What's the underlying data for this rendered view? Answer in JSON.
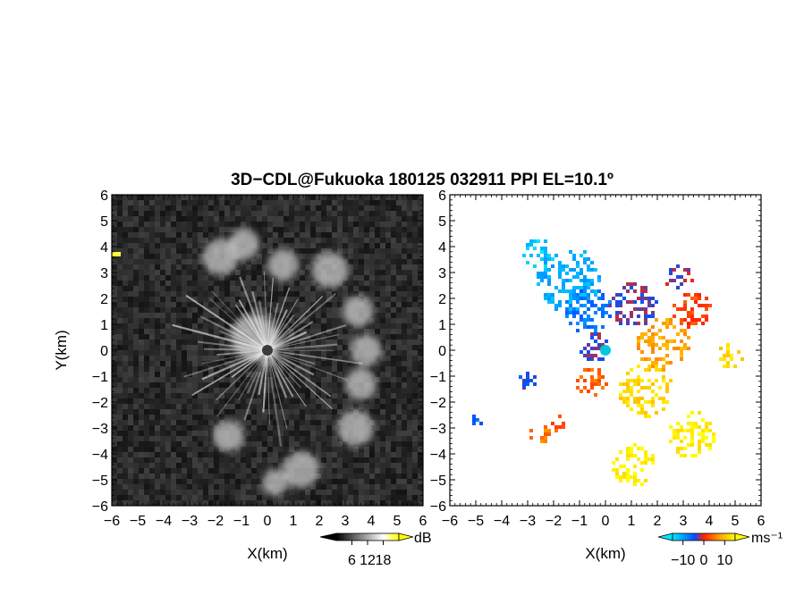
{
  "chart_data": [
    {
      "type": "heatmap",
      "panel": "left",
      "title": "3D−CDL@Fukuoka 180125 032911 PPI EL=10.1º",
      "xlabel": "X(km)",
      "ylabel": "Y(km)",
      "xlim": [
        -6,
        6
      ],
      "ylim": [
        -6,
        6
      ],
      "xticks": [
        "−6",
        "−5",
        "−4",
        "−3",
        "−2",
        "−1",
        "0",
        "1",
        "2",
        "3",
        "4",
        "5",
        "6"
      ],
      "yticks": [
        "6",
        "5",
        "4",
        "3",
        "2",
        "1",
        "0",
        "−1",
        "−2",
        "−3",
        "−4",
        "−5",
        "−6"
      ],
      "colorbar": {
        "unit": "dB",
        "ticks": [
          "6",
          "12",
          "18"
        ],
        "range": [
          0,
          24
        ],
        "colors": [
          "#000000",
          "#ffffff",
          "#ffff00"
        ]
      },
      "echo_regions": [
        {
          "x": -0.5,
          "y": 0.5,
          "r": 0.9
        },
        {
          "x": -1.8,
          "y": 3.6,
          "r": 0.7
        },
        {
          "x": -0.9,
          "y": 4.1,
          "r": 0.6
        },
        {
          "x": 0.6,
          "y": 3.3,
          "r": 0.6
        },
        {
          "x": 2.4,
          "y": 3.1,
          "r": 0.7
        },
        {
          "x": 3.5,
          "y": 1.5,
          "r": 0.6
        },
        {
          "x": 3.8,
          "y": 0.0,
          "r": 0.6
        },
        {
          "x": 3.6,
          "y": -1.3,
          "r": 0.6
        },
        {
          "x": 3.4,
          "y": -3.0,
          "r": 0.7
        },
        {
          "x": 1.3,
          "y": -4.6,
          "r": 0.7
        },
        {
          "x": -1.5,
          "y": -3.3,
          "r": 0.6
        },
        {
          "x": 0.3,
          "y": -5.1,
          "r": 0.5
        }
      ]
    },
    {
      "type": "heatmap",
      "panel": "right",
      "xlabel": "X(km)",
      "xlim": [
        -6,
        6
      ],
      "ylim": [
        -6,
        6
      ],
      "xticks": [
        "−6",
        "−5",
        "−4",
        "−3",
        "−2",
        "−1",
        "0",
        "1",
        "2",
        "3",
        "4",
        "5",
        "6"
      ],
      "yticks": [
        "6",
        "5",
        "4",
        "3",
        "2",
        "1",
        "0",
        "−1",
        "−2",
        "−3",
        "−4",
        "−5",
        "−6"
      ],
      "colorbar": {
        "unit": "ms⁻¹",
        "ticks": [
          "−10",
          "0",
          "10"
        ],
        "range": [
          -15,
          15
        ],
        "colors": [
          "#00e8ff",
          "#0050ff",
          "#ff2000",
          "#ffa000",
          "#ffff00"
        ]
      },
      "velocity_regions": [
        {
          "x": -1.5,
          "y": 2.8,
          "r": 1.2,
          "v": -11
        },
        {
          "x": -2.6,
          "y": 3.8,
          "r": 0.6,
          "v": -13
        },
        {
          "x": -0.7,
          "y": 1.6,
          "r": 0.9,
          "v": -7
        },
        {
          "x": -0.5,
          "y": 0.2,
          "r": 0.6,
          "v": -3
        },
        {
          "x": 1.0,
          "y": 1.8,
          "r": 0.9,
          "v": -3
        },
        {
          "x": 2.8,
          "y": 2.9,
          "r": 0.5,
          "v": -2
        },
        {
          "x": 3.3,
          "y": 1.6,
          "r": 0.7,
          "v": 2
        },
        {
          "x": 2.2,
          "y": 0.3,
          "r": 1.0,
          "v": 8
        },
        {
          "x": 4.8,
          "y": -0.2,
          "r": 0.5,
          "v": 12
        },
        {
          "x": 1.5,
          "y": -1.5,
          "r": 1.0,
          "v": 12
        },
        {
          "x": 3.3,
          "y": -3.2,
          "r": 0.9,
          "v": 14
        },
        {
          "x": 1.0,
          "y": -4.4,
          "r": 0.8,
          "v": 14
        },
        {
          "x": -0.6,
          "y": -1.2,
          "r": 0.6,
          "v": 4
        },
        {
          "x": -2.6,
          "y": -3.1,
          "r": 0.4,
          "v": 5
        },
        {
          "x": -1.9,
          "y": -2.7,
          "r": 0.3,
          "v": 3
        },
        {
          "x": -4.9,
          "y": -2.7,
          "r": 0.3,
          "v": -6
        },
        {
          "x": -3.0,
          "y": -1.0,
          "r": 0.4,
          "v": -5
        }
      ]
    }
  ]
}
